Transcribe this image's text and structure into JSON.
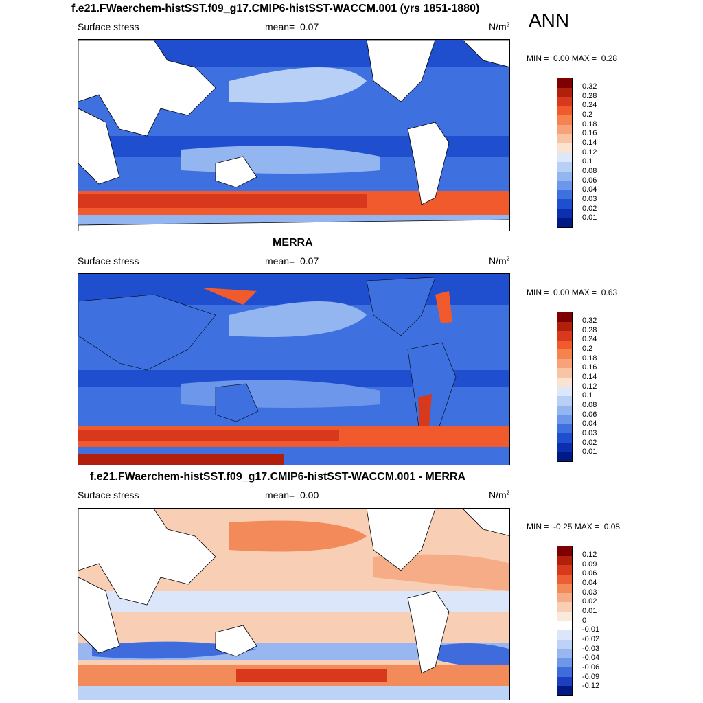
{
  "season": "ANN",
  "panels": [
    {
      "title": "f.e21.FWaerchem-histSST.f09_g17.CMIP6-histSST-WACCM.001 (yrs 1851-1880)",
      "left_label": "Surface stress",
      "mean_label": "mean=",
      "mean_value": "0.07",
      "unit": "N/m",
      "unit_sup": "2",
      "min_label": "MIN =",
      "min_value": "0.00",
      "max_label": "MAX =",
      "max_value": "0.28",
      "colorbar_labels": [
        "0.32",
        "0.28",
        "0.24",
        "0.2",
        "0.18",
        "0.16",
        "0.14",
        "0.12",
        "0.1",
        "0.08",
        "0.06",
        "0.04",
        "0.03",
        "0.02",
        "0.01"
      ]
    },
    {
      "title": "MERRA",
      "left_label": "Surface stress",
      "mean_label": "mean=",
      "mean_value": "0.07",
      "unit": "N/m",
      "unit_sup": "2",
      "min_label": "MIN =",
      "min_value": "0.00",
      "max_label": "MAX =",
      "max_value": "0.63",
      "colorbar_labels": [
        "0.32",
        "0.28",
        "0.24",
        "0.2",
        "0.18",
        "0.16",
        "0.14",
        "0.12",
        "0.1",
        "0.08",
        "0.06",
        "0.04",
        "0.03",
        "0.02",
        "0.01"
      ]
    },
    {
      "title": "f.e21.FWaerchem-histSST.f09_g17.CMIP6-histSST-WACCM.001 - MERRA",
      "left_label": "Surface stress",
      "mean_label": "mean=",
      "mean_value": "0.00",
      "unit": "N/m",
      "unit_sup": "2",
      "min_label": "MIN =",
      "min_value": "-0.25",
      "max_label": "MAX =",
      "max_value": "0.08",
      "colorbar_labels": [
        "0.12",
        "0.09",
        "0.06",
        "0.04",
        "0.03",
        "0.02",
        "0.01",
        "0",
        "-0.01",
        "-0.02",
        "-0.03",
        "-0.04",
        "-0.06",
        "-0.09",
        "-0.12"
      ]
    }
  ],
  "colorbars": {
    "sequential": [
      "#7f0000",
      "#b0200a",
      "#d8381c",
      "#f05a2c",
      "#f5834e",
      "#f7a27a",
      "#f9c4a4",
      "#fbe3d2",
      "#dbe8fb",
      "#b9d0f6",
      "#93b5f0",
      "#6d97ea",
      "#3f70e0",
      "#1f4fcf",
      "#0c2fb0",
      "#001a85"
    ],
    "diverging": [
      "#7f0000",
      "#b0200a",
      "#d8381c",
      "#ee5e34",
      "#f38a5a",
      "#f6ad87",
      "#f8cfb4",
      "#fae9dd",
      "#ffffff",
      "#dbe6fa",
      "#bcd2f6",
      "#98b7f0",
      "#6f97e8",
      "#3f6bdc",
      "#1c3fbf",
      "#001a85"
    ]
  }
}
